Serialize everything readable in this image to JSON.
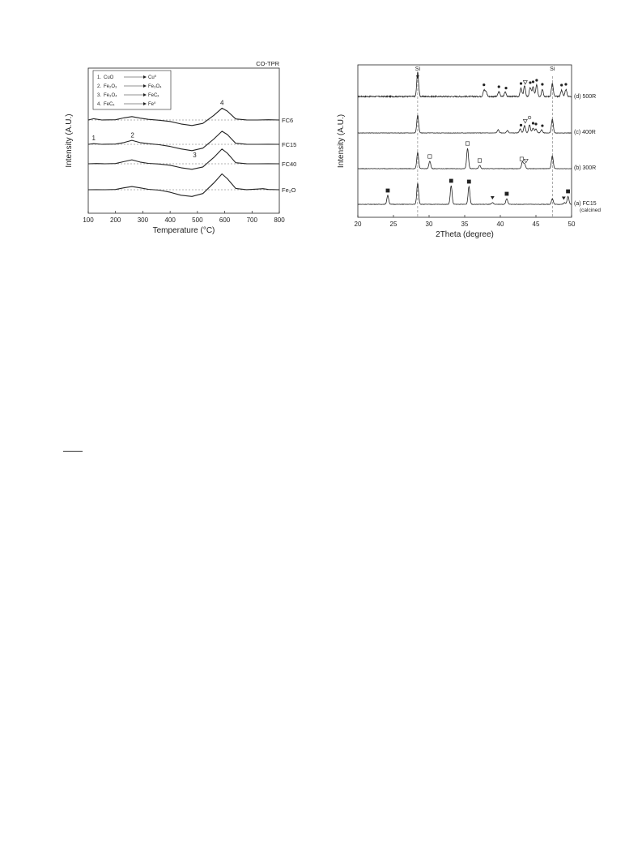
{
  "chart_data": [
    {
      "type": "line",
      "corner_label": "CO-TPR",
      "xlabel": "Temperature (°C)",
      "ylabel": "Intensity (A.U.)",
      "xlim": [
        100,
        800
      ],
      "xticks": [
        "100",
        "200",
        "300",
        "400",
        "500",
        "600",
        "700",
        "800"
      ],
      "legend_box": {
        "placement": "top-left",
        "items": [
          {
            "num": "1.",
            "from": "CuO",
            "to": "Cu⁰"
          },
          {
            "num": "2.",
            "from": "Fe₂O₃",
            "to": "Fe₃O₄"
          },
          {
            "num": "3.",
            "from": "Fe₃O₄",
            "to": "FeCₓ"
          },
          {
            "num": "4.",
            "from": "FeCₓ",
            "to": "Fe⁰"
          }
        ]
      },
      "annotations": [
        {
          "text": "1",
          "x": 120,
          "series": "FC15"
        },
        {
          "text": "2",
          "x": 262,
          "series": "FC15"
        },
        {
          "text": "3",
          "x": 490,
          "series": "FC15"
        },
        {
          "text": "4",
          "x": 590,
          "series": "FC6"
        }
      ],
      "series": [
        {
          "name": "FC6",
          "label_text": "FC6",
          "baseline_level": 0.0,
          "x": [
            100,
            120,
            150,
            200,
            230,
            260,
            290,
            320,
            360,
            400,
            440,
            480,
            520,
            560,
            590,
            610,
            640,
            680,
            720,
            760,
            800
          ],
          "y": [
            0,
            0.6,
            0,
            0.1,
            1.0,
            1.6,
            0.9,
            0.3,
            -0.1,
            -0.7,
            -1.9,
            -2.6,
            -1.6,
            2.2,
            5.6,
            4.2,
            0.5,
            0.05,
            0,
            0.1,
            0
          ]
        },
        {
          "name": "FC15",
          "label_text": "FC15",
          "baseline_level": 0.0,
          "x": [
            100,
            120,
            150,
            200,
            230,
            260,
            290,
            320,
            360,
            400,
            440,
            480,
            520,
            560,
            590,
            610,
            640,
            680,
            720,
            760,
            800
          ],
          "y": [
            0,
            0.3,
            0,
            0.1,
            0.8,
            1.9,
            0.8,
            0.3,
            -0.2,
            -1.0,
            -2.2,
            -3.0,
            -1.8,
            2.5,
            6.2,
            4.6,
            0.5,
            0.05,
            0,
            0.05,
            0
          ]
        },
        {
          "name": "FC40",
          "label_text": "FC40",
          "baseline_level": 0.0,
          "x": [
            100,
            130,
            160,
            200,
            230,
            260,
            290,
            320,
            360,
            400,
            440,
            480,
            520,
            560,
            590,
            610,
            640,
            680,
            720,
            760,
            800
          ],
          "y": [
            0,
            0.1,
            0,
            0.1,
            1.0,
            1.9,
            0.8,
            0.2,
            -0.1,
            -0.7,
            -1.9,
            -2.6,
            -1.5,
            3.0,
            7.0,
            5.0,
            0.5,
            0.05,
            0,
            0.05,
            0
          ]
        },
        {
          "name": "Fe2O3",
          "label_text": "Fe₂O₃",
          "baseline_level": 0.0,
          "x": [
            100,
            130,
            160,
            200,
            230,
            260,
            290,
            320,
            360,
            400,
            440,
            480,
            520,
            560,
            590,
            610,
            640,
            680,
            720,
            740,
            760,
            800
          ],
          "y": [
            0,
            0.05,
            0,
            0.1,
            0.9,
            1.5,
            0.9,
            0.2,
            -0.2,
            -1.2,
            -2.6,
            -3.2,
            -1.8,
            3.2,
            7.5,
            5.2,
            0.6,
            0.05,
            0.3,
            0.5,
            0.1,
            0
          ]
        }
      ]
    },
    {
      "type": "line",
      "xlabel": "2Theta (degree)",
      "ylabel": "Intensity (A.U.)",
      "xlim": [
        20,
        50
      ],
      "xticks": [
        "20",
        "25",
        "30",
        "35",
        "40",
        "45",
        "50"
      ],
      "reference_lines": [
        {
          "x": 28.4,
          "label": "Si"
        },
        {
          "x": 47.3,
          "label": "Si"
        }
      ],
      "series": [
        {
          "name": "(d) 500R",
          "label_text": "(d) 500R",
          "peaks": [
            {
              "x": 28.4,
              "h": 30
            },
            {
              "x": 37.7,
              "h": 8
            },
            {
              "x": 38.0,
              "h": 6
            },
            {
              "x": 39.8,
              "h": 6
            },
            {
              "x": 40.7,
              "h": 6
            },
            {
              "x": 42.9,
              "h": 10
            },
            {
              "x": 43.4,
              "h": 13
            },
            {
              "x": 44.2,
              "h": 11
            },
            {
              "x": 44.6,
              "h": 12
            },
            {
              "x": 45.1,
              "h": 14
            },
            {
              "x": 45.9,
              "h": 9
            },
            {
              "x": 47.3,
              "h": 16
            },
            {
              "x": 48.6,
              "h": 8
            },
            {
              "x": 49.2,
              "h": 9
            }
          ],
          "markers": [
            {
              "x": 37.7,
              "symbol": "filled-circle"
            },
            {
              "x": 39.8,
              "symbol": "filled-circle"
            },
            {
              "x": 40.8,
              "symbol": "filled-circle"
            },
            {
              "x": 42.9,
              "symbol": "filled-circle"
            },
            {
              "x": 43.5,
              "symbol": "open-triangle-down"
            },
            {
              "x": 44.2,
              "symbol": "filled-circle"
            },
            {
              "x": 44.6,
              "symbol": "filled-circle"
            },
            {
              "x": 45.1,
              "symbol": "filled-circle"
            },
            {
              "x": 45.9,
              "symbol": "filled-circle"
            },
            {
              "x": 48.6,
              "symbol": "filled-circle"
            },
            {
              "x": 49.2,
              "symbol": "filled-circle"
            }
          ]
        },
        {
          "name": "(c) 400R",
          "label_text": "(c) 400R",
          "peaks": [
            {
              "x": 28.4,
              "h": 22
            },
            {
              "x": 39.7,
              "h": 4
            },
            {
              "x": 41.0,
              "h": 3
            },
            {
              "x": 42.8,
              "h": 5
            },
            {
              "x": 43.4,
              "h": 9
            },
            {
              "x": 44.1,
              "h": 10
            },
            {
              "x": 44.6,
              "h": 6
            },
            {
              "x": 45.0,
              "h": 5
            },
            {
              "x": 45.8,
              "h": 4
            },
            {
              "x": 47.3,
              "h": 17
            }
          ],
          "markers": [
            {
              "x": 42.9,
              "symbol": "filled-circle"
            },
            {
              "x": 43.5,
              "symbol": "open-triangle-down"
            },
            {
              "x": 44.1,
              "symbol": "open-circle"
            },
            {
              "x": 44.6,
              "symbol": "filled-circle"
            },
            {
              "x": 45.0,
              "symbol": "filled-circle"
            },
            {
              "x": 45.9,
              "symbol": "filled-circle"
            }
          ]
        },
        {
          "name": "(b) 300R",
          "label_text": "(b) 300R",
          "peaks": [
            {
              "x": 28.4,
              "h": 20
            },
            {
              "x": 30.1,
              "h": 9
            },
            {
              "x": 35.4,
              "h": 25
            },
            {
              "x": 37.1,
              "h": 4
            },
            {
              "x": 43.1,
              "h": 8
            },
            {
              "x": 43.4,
              "h": 6
            },
            {
              "x": 47.3,
              "h": 16
            }
          ],
          "markers": [
            {
              "x": 30.1,
              "symbol": "open-square"
            },
            {
              "x": 35.4,
              "symbol": "open-square"
            },
            {
              "x": 37.1,
              "symbol": "open-square"
            },
            {
              "x": 43.0,
              "symbol": "open-square"
            },
            {
              "x": 43.6,
              "symbol": "open-triangle-down"
            }
          ]
        },
        {
          "name": "(a) FC15 (calcined)",
          "label_text": "(a) FC15",
          "label_sub": "(calcined)",
          "peaks": [
            {
              "x": 24.2,
              "h": 11
            },
            {
              "x": 28.4,
              "h": 26
            },
            {
              "x": 33.1,
              "h": 23
            },
            {
              "x": 35.6,
              "h": 22
            },
            {
              "x": 38.9,
              "h": 2
            },
            {
              "x": 40.9,
              "h": 7
            },
            {
              "x": 47.3,
              "h": 7
            },
            {
              "x": 49.0,
              "h": 2
            },
            {
              "x": 49.5,
              "h": 10
            }
          ],
          "markers": [
            {
              "x": 24.2,
              "symbol": "filled-square"
            },
            {
              "x": 33.1,
              "symbol": "filled-square"
            },
            {
              "x": 35.6,
              "symbol": "filled-square"
            },
            {
              "x": 38.9,
              "symbol": "filled-triangle-down"
            },
            {
              "x": 40.9,
              "symbol": "filled-square"
            },
            {
              "x": 48.9,
              "symbol": "filled-triangle-down"
            },
            {
              "x": 49.5,
              "symbol": "filled-square"
            }
          ]
        }
      ]
    }
  ]
}
